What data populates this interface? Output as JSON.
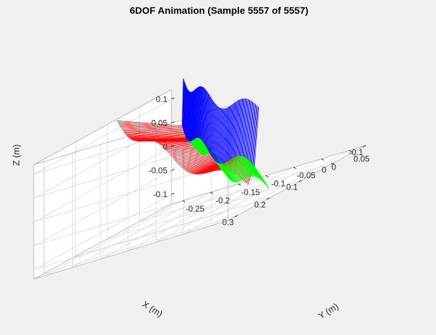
{
  "figure_background": "#f0f0f0",
  "axes_background": "#ffffff",
  "grid_color": "#dfdfdf",
  "box_color": "#bdbdbd",
  "chart_data": {
    "type": "3d-line-animation",
    "title": "6DOF Animation (Sample 5557 of 5557)",
    "xlabel": "X (m)",
    "ylabel": "Y (m)",
    "zlabel": "Z (m)",
    "xlim": [
      -0.1,
      0.33
    ],
    "ylim": [
      -0.27,
      0.08
    ],
    "zlim": [
      -0.12,
      0.12
    ],
    "grid": true,
    "xticks": [
      -0.1,
      0,
      0.1,
      0.2,
      0.3
    ],
    "xtick_labels": [
      "-0.1",
      "0",
      "0.1",
      "0.2",
      "0.3"
    ],
    "yticks": [
      -0.25,
      -0.2,
      -0.15,
      -0.1,
      -0.05,
      0,
      0.05
    ],
    "ytick_labels": [
      "-0.25",
      "-0.2",
      "-0.15",
      "-0.1",
      "-0.05",
      "0",
      "0.05"
    ],
    "zticks": [
      -0.1,
      -0.05,
      0,
      0.05,
      0.1
    ],
    "ztick_labels": [
      "-0.1",
      "-0.05",
      "0",
      "0.05",
      "0.1"
    ],
    "series": [
      {
        "axis": "x",
        "color": "#ff0000"
      },
      {
        "axis": "y",
        "color": "#00ff00"
      },
      {
        "axis": "z",
        "color": "#0000ff"
      }
    ]
  }
}
